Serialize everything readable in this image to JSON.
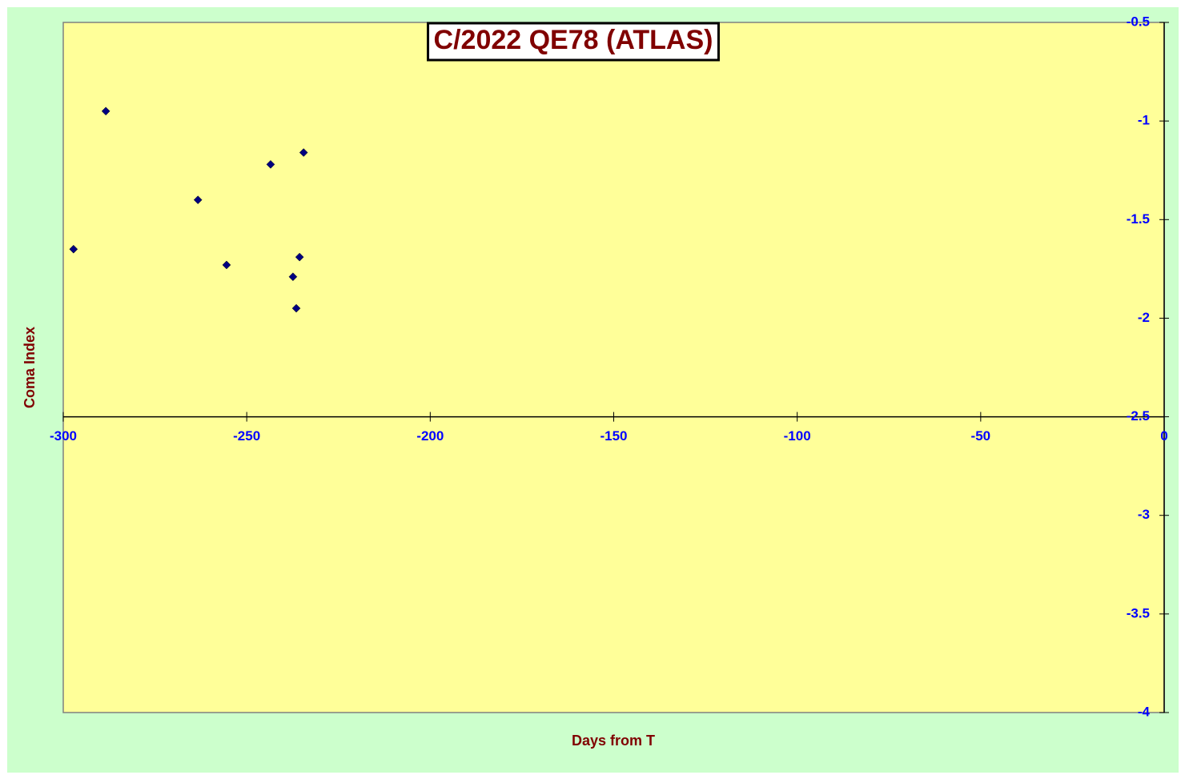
{
  "chart_data": {
    "type": "scatter",
    "title": "C/2022 QE78 (ATLAS)",
    "x_label": "Days from T",
    "y_label": "Coma Index",
    "xlim": [
      -300,
      0
    ],
    "xticks": [
      -300,
      -250,
      -200,
      -150,
      -100,
      -50,
      0
    ],
    "ylim": [
      -4,
      -0.5
    ],
    "yticks": [
      -0.5,
      -1,
      -1.5,
      -2,
      -2.5,
      -3,
      -3.5,
      -4
    ],
    "x_axis_crosses_at": -2.5,
    "series": [
      {
        "color": "#000080",
        "x": [
          -297.2,
          -288.4,
          -263.3,
          -255.5,
          -243.5,
          -237.4,
          -236.5,
          -235.6,
          -234.5
        ],
        "values": [
          -1.65,
          -0.95,
          -1.4,
          -1.73,
          -1.22,
          -1.79,
          -1.95,
          -1.69,
          -1.16
        ]
      }
    ]
  }
}
